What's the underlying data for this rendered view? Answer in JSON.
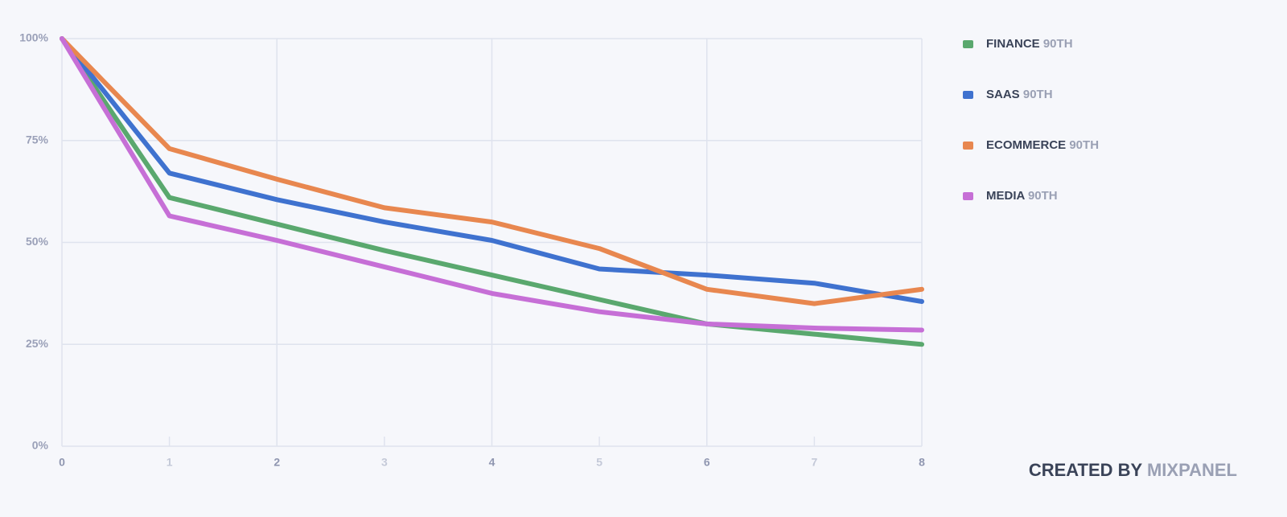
{
  "chart_data": {
    "type": "line",
    "x": [
      0,
      1,
      2,
      3,
      4,
      5,
      6,
      7,
      8
    ],
    "series": [
      {
        "name": "FINANCE",
        "percentile": "90TH",
        "color": "#5aa86e",
        "values": [
          100,
          61,
          54.5,
          48,
          42,
          36,
          30,
          27.5,
          25
        ]
      },
      {
        "name": "SAAS",
        "percentile": "90TH",
        "color": "#3f72cf",
        "values": [
          100,
          67,
          60.5,
          55,
          50.5,
          43.5,
          42,
          40,
          35.5
        ]
      },
      {
        "name": "ECOMMERCE",
        "percentile": "90TH",
        "color": "#e8874f",
        "values": [
          100,
          73,
          65.5,
          58.5,
          55,
          48.5,
          38.5,
          35,
          38.5
        ]
      },
      {
        "name": "MEDIA",
        "percentile": "90TH",
        "color": "#c66fd6",
        "values": [
          100,
          56.5,
          50.5,
          44,
          37.5,
          33,
          30,
          29,
          28.5
        ]
      }
    ],
    "xlim": [
      0,
      8
    ],
    "xticks": [
      0,
      1,
      2,
      3,
      4,
      5,
      6,
      7,
      8
    ],
    "ylim": [
      0,
      100
    ],
    "yticks": [
      {
        "value": 0,
        "label": "0%"
      },
      {
        "value": 25,
        "label": "25%"
      },
      {
        "value": 50,
        "label": "50%"
      },
      {
        "value": 75,
        "label": "75%"
      },
      {
        "value": 100,
        "label": "100%"
      }
    ],
    "grid": true,
    "legend": "right"
  },
  "credit": {
    "prefix": "CREATED BY",
    "brand": "MIXPANEL"
  }
}
